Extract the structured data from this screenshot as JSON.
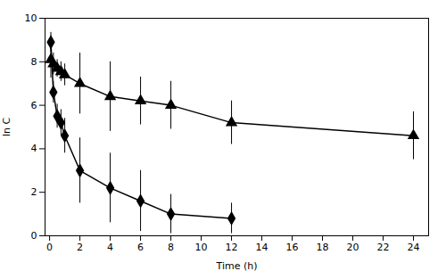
{
  "chart_data": {
    "type": "line",
    "xlabel": "Time (h)",
    "ylabel": "ln C",
    "xlim": [
      -0.3,
      25
    ],
    "ylim": [
      0,
      10
    ],
    "xticks": [
      0,
      2,
      4,
      6,
      8,
      10,
      12,
      14,
      16,
      18,
      20,
      22,
      24
    ],
    "yticks": [
      0,
      2,
      4,
      6,
      8,
      10
    ],
    "grid": false,
    "series": [
      {
        "x": [
          0.083,
          0.25,
          0.5,
          0.75,
          1.0,
          2.0,
          4.0,
          6.0,
          8.0,
          12.0,
          24.0
        ],
        "values": [
          8.1,
          7.9,
          7.7,
          7.55,
          7.4,
          7.0,
          6.4,
          6.2,
          6.0,
          5.2,
          4.6
        ],
        "errors": [
          0.85,
          0.5,
          0.4,
          0.45,
          0.5,
          1.4,
          1.6,
          1.1,
          1.1,
          1.0,
          1.1
        ],
        "color": "#000000",
        "marker": "triangle",
        "line_style": "solid"
      },
      {
        "x": [
          0.083,
          0.25,
          0.5,
          0.75,
          1.0,
          2.0,
          4.0,
          6.0,
          8.0,
          12.0
        ],
        "values": [
          8.9,
          6.6,
          5.5,
          5.2,
          4.6,
          3.0,
          2.2,
          1.6,
          1.0,
          0.8
        ],
        "errors": [
          0.45,
          0.5,
          0.55,
          0.6,
          0.8,
          1.5,
          1.6,
          1.4,
          0.9,
          0.7
        ],
        "color": "#000000",
        "marker": "diamond",
        "line_style": "solid"
      }
    ]
  }
}
